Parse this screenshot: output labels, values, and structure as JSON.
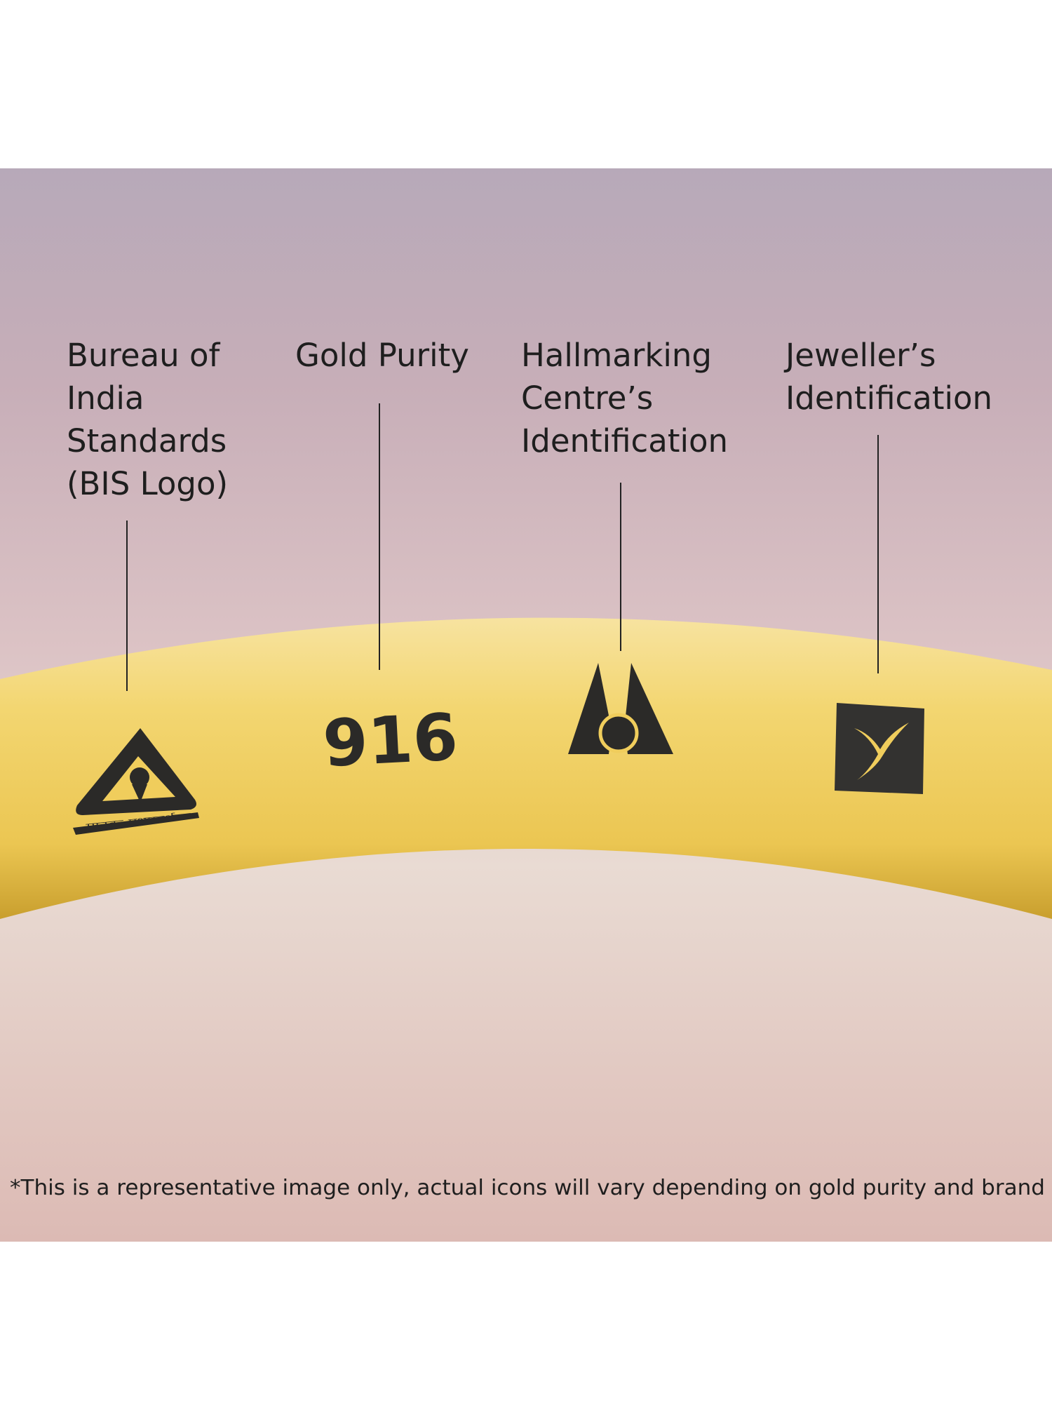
{
  "labels": {
    "bis": "Bureau of\nIndia\nStandards\n(BIS Logo)",
    "purity": "Gold Purity",
    "hallmarking_centre": "Hallmarking\nCentre’s\nIdentification",
    "jeweller": "Jeweller’s\nIdentification"
  },
  "marks": {
    "purity_value": "916",
    "bis_logo_text": "मानकः पथप्रदर्शकः"
  },
  "footnote": "*This is a representative image only, actual icons will vary depending on gold purity and brand",
  "colors": {
    "gold": "#f0cd5c",
    "mark": "#2b2a28",
    "background_top": "#b3a6bb",
    "background_bottom": "#e2c6bf"
  }
}
